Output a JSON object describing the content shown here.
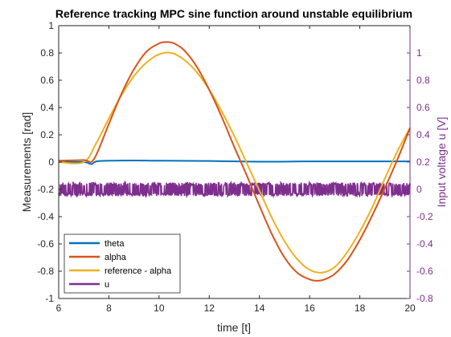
{
  "chart_data": {
    "type": "line",
    "title": "Reference tracking MPC sine function around unstable equilibrium",
    "xlabel": "time [t]",
    "ylabel_left": "Measurements [rad]",
    "ylabel_right": "Input voltage u [V]",
    "xlim": [
      6,
      20
    ],
    "ylim_left": [
      -1,
      1
    ],
    "ylim_right": [
      -0.8,
      1.2
    ],
    "x_ticks": [
      "6",
      "8",
      "10",
      "12",
      "14",
      "16",
      "18",
      "20"
    ],
    "y_ticks_left": [
      "1",
      "0.8",
      "0.6",
      "0.4",
      "0.2",
      "0",
      "-0.2",
      "-0.4",
      "-0.6",
      "-0.8",
      "-1"
    ],
    "y_ticks_right": [
      "1",
      "0.8",
      "0.6",
      "0.4",
      "0.2",
      "0",
      "-0.2",
      "-0.4",
      "-0.6",
      "-0.8"
    ],
    "grid": false,
    "legend_position": "bottom-left",
    "colors": {
      "theta": "#0072BD",
      "alpha": "#D95319",
      "reference": "#EDB120",
      "u": "#7E2F8E",
      "right_axis": "#7E2F8E"
    },
    "series": [
      {
        "name": "theta",
        "axis": "left",
        "x": [
          6,
          7,
          7.3,
          7.5,
          8,
          9,
          10,
          12,
          14,
          16,
          18,
          20
        ],
        "y": [
          0.0,
          0.0,
          -0.015,
          0.005,
          0.01,
          0.012,
          0.01,
          0.008,
          0.003,
          0.005,
          0.005,
          0.005
        ]
      },
      {
        "name": "alpha",
        "axis": "left",
        "x": [
          6,
          7,
          7.4,
          8,
          8.5,
          9,
          9.5,
          10,
          10.3,
          10.6,
          11,
          11.5,
          12,
          12.5,
          13,
          13.5,
          14,
          14.5,
          15,
          15.5,
          16,
          16.3,
          16.6,
          17,
          17.5,
          18,
          18.5,
          19,
          19.5,
          20
        ],
        "y": [
          0.01,
          0.015,
          0.02,
          0.28,
          0.5,
          0.68,
          0.81,
          0.87,
          0.88,
          0.87,
          0.82,
          0.7,
          0.53,
          0.33,
          0.11,
          -0.1,
          -0.32,
          -0.53,
          -0.7,
          -0.81,
          -0.86,
          -0.87,
          -0.86,
          -0.82,
          -0.72,
          -0.57,
          -0.39,
          -0.19,
          0.02,
          0.25
        ]
      },
      {
        "name": "reference - alpha",
        "axis": "left",
        "x": [
          6,
          7,
          7.5,
          8,
          8.5,
          9,
          9.5,
          10,
          10.5,
          11,
          11.5,
          12,
          12.5,
          13,
          13.5,
          14,
          14.5,
          15,
          15.5,
          16,
          16.5,
          17,
          17.5,
          18,
          18.5,
          19,
          19.5,
          20
        ],
        "y": [
          0.0,
          0.0,
          0.14,
          0.32,
          0.49,
          0.63,
          0.73,
          0.79,
          0.8,
          0.75,
          0.66,
          0.53,
          0.37,
          0.19,
          -0.01,
          -0.21,
          -0.41,
          -0.58,
          -0.71,
          -0.79,
          -0.81,
          -0.77,
          -0.66,
          -0.51,
          -0.33,
          -0.12,
          0.08,
          0.25
        ]
      },
      {
        "name": "u",
        "axis": "right",
        "x": [
          6,
          20
        ],
        "y": [
          0.0,
          0.0
        ],
        "band": [
          -0.05,
          0.05
        ]
      }
    ]
  }
}
